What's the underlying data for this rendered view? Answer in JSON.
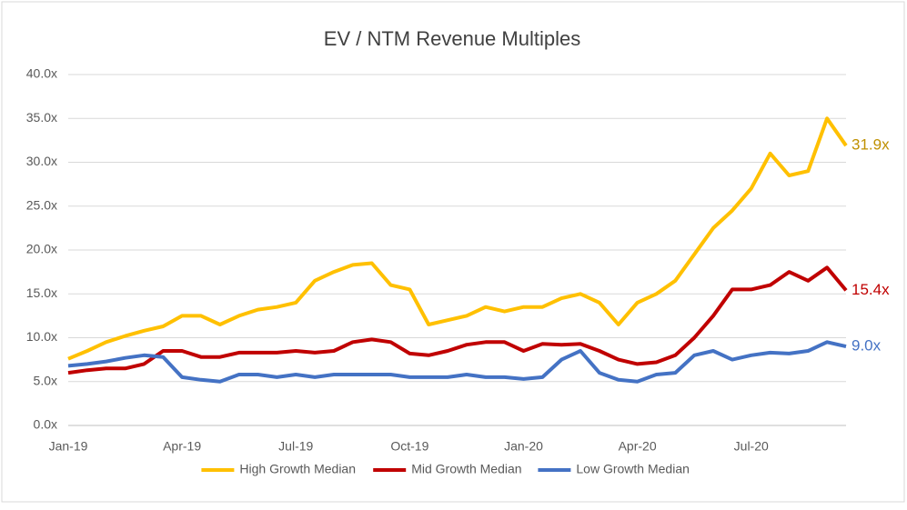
{
  "chart_data": {
    "type": "line",
    "title": "EV / NTM Revenue Multiples",
    "categories": [
      "Jan-19",
      null,
      null,
      null,
      null,
      null,
      "Apr-19",
      null,
      null,
      null,
      null,
      null,
      "Jul-19",
      null,
      null,
      null,
      null,
      null,
      "Oct-19",
      null,
      null,
      null,
      null,
      null,
      "Jan-20",
      null,
      null,
      null,
      null,
      null,
      "Apr-20",
      null,
      null,
      null,
      null,
      null,
      "Jul-20",
      null,
      null,
      null,
      null,
      null
    ],
    "series": [
      {
        "name": "High Growth Median",
        "color": "#ffc000",
        "values": [
          7.6,
          8.5,
          9.5,
          10.2,
          10.8,
          11.3,
          12.5,
          12.5,
          11.5,
          12.5,
          13.2,
          13.5,
          14.0,
          16.5,
          17.5,
          18.3,
          18.5,
          16.0,
          15.5,
          11.5,
          12.0,
          12.5,
          13.5,
          13.0,
          13.5,
          13.5,
          14.5,
          15.0,
          14.0,
          11.5,
          14.0,
          15.0,
          16.5,
          19.5,
          22.5,
          24.5,
          27.0,
          31.0,
          28.5,
          29.0,
          35.0,
          31.9
        ],
        "value_labels": [
          null,
          null,
          null,
          null,
          null,
          null,
          null,
          null,
          null,
          null,
          null,
          null,
          null,
          null,
          null,
          null,
          null,
          null,
          null,
          null,
          null,
          null,
          null,
          null,
          null,
          null,
          null,
          null,
          null,
          null,
          null,
          null,
          null,
          null,
          null,
          null,
          null,
          null,
          null,
          null,
          null,
          "31.9x"
        ],
        "label_color": "#bf9000"
      },
      {
        "name": "Mid Growth Median",
        "color": "#c00000",
        "values": [
          6.0,
          6.3,
          6.5,
          6.5,
          7.0,
          8.5,
          8.5,
          7.8,
          7.8,
          8.3,
          8.3,
          8.3,
          8.5,
          8.3,
          8.5,
          9.5,
          9.8,
          9.5,
          8.2,
          8.0,
          8.5,
          9.2,
          9.5,
          9.5,
          8.5,
          9.3,
          9.2,
          9.3,
          8.5,
          7.5,
          7.0,
          7.2,
          8.0,
          10.0,
          12.5,
          15.5,
          15.5,
          16.0,
          17.5,
          16.5,
          18.0,
          15.4
        ],
        "value_labels": [
          null,
          null,
          null,
          null,
          null,
          null,
          null,
          null,
          null,
          null,
          null,
          null,
          null,
          null,
          null,
          null,
          null,
          null,
          null,
          null,
          null,
          null,
          null,
          null,
          null,
          null,
          null,
          null,
          null,
          null,
          null,
          null,
          null,
          null,
          null,
          null,
          null,
          null,
          null,
          null,
          null,
          "15.4x"
        ],
        "label_color": "#c00000"
      },
      {
        "name": "Low Growth Median",
        "color": "#4472c4",
        "values": [
          6.8,
          7.0,
          7.3,
          7.7,
          8.0,
          7.8,
          5.5,
          5.2,
          5.0,
          5.8,
          5.8,
          5.5,
          5.8,
          5.5,
          5.8,
          5.8,
          5.8,
          5.8,
          5.5,
          5.5,
          5.5,
          5.8,
          5.5,
          5.5,
          5.3,
          5.5,
          7.5,
          8.5,
          6.0,
          5.2,
          5.0,
          5.8,
          6.0,
          8.0,
          8.5,
          7.5,
          8.0,
          8.3,
          8.2,
          8.5,
          9.5,
          9.0
        ],
        "value_labels": [
          null,
          null,
          null,
          null,
          null,
          null,
          null,
          null,
          null,
          null,
          null,
          null,
          null,
          null,
          null,
          null,
          null,
          null,
          null,
          null,
          null,
          null,
          null,
          null,
          null,
          null,
          null,
          null,
          null,
          null,
          null,
          null,
          null,
          null,
          null,
          null,
          null,
          null,
          null,
          null,
          null,
          "9.0x"
        ],
        "label_color": "#4472c4"
      }
    ],
    "ylim": [
      0,
      40
    ],
    "yticks": [
      {
        "value": 0,
        "label": "0.0x"
      },
      {
        "value": 5,
        "label": "5.0x"
      },
      {
        "value": 10,
        "label": "10.0x"
      },
      {
        "value": 15,
        "label": "15.0x"
      },
      {
        "value": 20,
        "label": "20.0x"
      },
      {
        "value": 25,
        "label": "25.0x"
      },
      {
        "value": 30,
        "label": "30.0x"
      },
      {
        "value": 35,
        "label": "35.0x"
      },
      {
        "value": 40,
        "label": "40.0x"
      }
    ],
    "grid": true,
    "legend": "bottom"
  }
}
